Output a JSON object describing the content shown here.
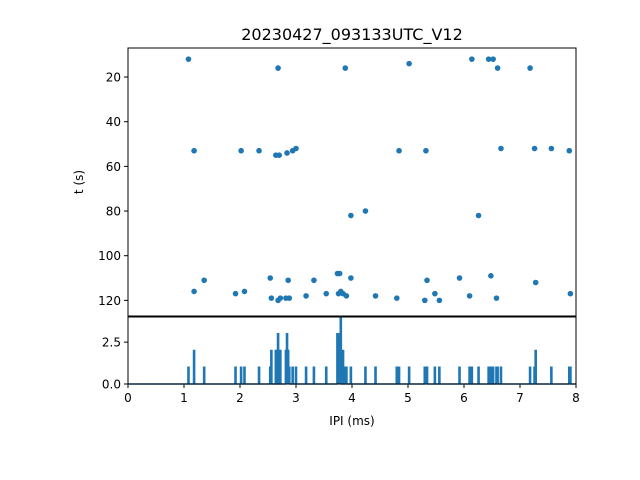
{
  "chart_data": [
    {
      "type": "scatter",
      "title": "20230427_093133UTC_V12",
      "xlabel": "",
      "ylabel": "t (s)",
      "xlim": [
        0,
        8
      ],
      "ylim": [
        127,
        7
      ],
      "y_inverted": true,
      "yticks": [
        20,
        40,
        60,
        80,
        100,
        120
      ],
      "color": "#1f77b4",
      "points": [
        {
          "x": 1.08,
          "y": 12
        },
        {
          "x": 2.68,
          "y": 16
        },
        {
          "x": 3.88,
          "y": 16
        },
        {
          "x": 5.02,
          "y": 14
        },
        {
          "x": 6.14,
          "y": 12
        },
        {
          "x": 6.44,
          "y": 12
        },
        {
          "x": 6.52,
          "y": 12
        },
        {
          "x": 6.6,
          "y": 16
        },
        {
          "x": 7.18,
          "y": 16
        },
        {
          "x": 1.18,
          "y": 53
        },
        {
          "x": 2.02,
          "y": 53
        },
        {
          "x": 2.34,
          "y": 53
        },
        {
          "x": 2.64,
          "y": 55
        },
        {
          "x": 2.7,
          "y": 55
        },
        {
          "x": 2.84,
          "y": 54
        },
        {
          "x": 2.94,
          "y": 53
        },
        {
          "x": 3.0,
          "y": 52
        },
        {
          "x": 4.84,
          "y": 53
        },
        {
          "x": 5.32,
          "y": 53
        },
        {
          "x": 6.66,
          "y": 52
        },
        {
          "x": 7.26,
          "y": 52
        },
        {
          "x": 7.56,
          "y": 52
        },
        {
          "x": 7.88,
          "y": 53
        },
        {
          "x": 3.98,
          "y": 82
        },
        {
          "x": 4.24,
          "y": 80
        },
        {
          "x": 6.26,
          "y": 82
        },
        {
          "x": 1.18,
          "y": 116
        },
        {
          "x": 1.36,
          "y": 111
        },
        {
          "x": 1.92,
          "y": 117
        },
        {
          "x": 2.08,
          "y": 116
        },
        {
          "x": 2.54,
          "y": 110
        },
        {
          "x": 2.56,
          "y": 119
        },
        {
          "x": 2.68,
          "y": 120
        },
        {
          "x": 2.72,
          "y": 119
        },
        {
          "x": 2.82,
          "y": 119
        },
        {
          "x": 2.86,
          "y": 111
        },
        {
          "x": 2.88,
          "y": 119
        },
        {
          "x": 3.18,
          "y": 118
        },
        {
          "x": 3.32,
          "y": 111
        },
        {
          "x": 3.54,
          "y": 117
        },
        {
          "x": 3.74,
          "y": 108
        },
        {
          "x": 3.78,
          "y": 108
        },
        {
          "x": 3.76,
          "y": 117
        },
        {
          "x": 3.8,
          "y": 116
        },
        {
          "x": 3.84,
          "y": 117
        },
        {
          "x": 3.9,
          "y": 118
        },
        {
          "x": 3.98,
          "y": 110
        },
        {
          "x": 4.42,
          "y": 118
        },
        {
          "x": 4.8,
          "y": 119
        },
        {
          "x": 5.3,
          "y": 120
        },
        {
          "x": 5.34,
          "y": 111
        },
        {
          "x": 5.48,
          "y": 117
        },
        {
          "x": 5.56,
          "y": 120
        },
        {
          "x": 5.92,
          "y": 110
        },
        {
          "x": 6.1,
          "y": 118
        },
        {
          "x": 6.48,
          "y": 109
        },
        {
          "x": 6.58,
          "y": 119
        },
        {
          "x": 7.28,
          "y": 112
        },
        {
          "x": 7.9,
          "y": 117
        }
      ]
    },
    {
      "type": "line",
      "title": "",
      "xlabel": "IPI (ms)",
      "ylabel": "",
      "xlim": [
        0,
        8
      ],
      "ylim": [
        0,
        4
      ],
      "xticks": [
        0,
        1,
        2,
        3,
        4,
        5,
        6,
        7,
        8
      ],
      "yticks": [
        "0.0",
        "2.5"
      ],
      "color": "#1f77b4",
      "bin_width": 0.02,
      "peaks": [
        {
          "x": 1.08,
          "y": 1
        },
        {
          "x": 1.18,
          "y": 2
        },
        {
          "x": 1.36,
          "y": 1
        },
        {
          "x": 1.92,
          "y": 1
        },
        {
          "x": 2.02,
          "y": 1
        },
        {
          "x": 2.08,
          "y": 1
        },
        {
          "x": 2.34,
          "y": 1
        },
        {
          "x": 2.54,
          "y": 1
        },
        {
          "x": 2.56,
          "y": 2
        },
        {
          "x": 2.64,
          "y": 2
        },
        {
          "x": 2.68,
          "y": 3
        },
        {
          "x": 2.72,
          "y": 2
        },
        {
          "x": 2.82,
          "y": 2
        },
        {
          "x": 2.84,
          "y": 3
        },
        {
          "x": 2.86,
          "y": 2
        },
        {
          "x": 2.88,
          "y": 1
        },
        {
          "x": 2.94,
          "y": 1
        },
        {
          "x": 3.0,
          "y": 1
        },
        {
          "x": 3.18,
          "y": 1
        },
        {
          "x": 3.32,
          "y": 1
        },
        {
          "x": 3.54,
          "y": 1
        },
        {
          "x": 3.74,
          "y": 3
        },
        {
          "x": 3.76,
          "y": 2
        },
        {
          "x": 3.78,
          "y": 3
        },
        {
          "x": 3.8,
          "y": 4
        },
        {
          "x": 3.84,
          "y": 2
        },
        {
          "x": 3.88,
          "y": 1
        },
        {
          "x": 3.9,
          "y": 1
        },
        {
          "x": 3.98,
          "y": 1
        },
        {
          "x": 4.24,
          "y": 1
        },
        {
          "x": 4.42,
          "y": 1
        },
        {
          "x": 4.8,
          "y": 1
        },
        {
          "x": 4.84,
          "y": 1
        },
        {
          "x": 5.02,
          "y": 1
        },
        {
          "x": 5.3,
          "y": 1
        },
        {
          "x": 5.32,
          "y": 1
        },
        {
          "x": 5.34,
          "y": 1
        },
        {
          "x": 5.48,
          "y": 1
        },
        {
          "x": 5.56,
          "y": 1
        },
        {
          "x": 5.92,
          "y": 1
        },
        {
          "x": 6.1,
          "y": 1
        },
        {
          "x": 6.14,
          "y": 1
        },
        {
          "x": 6.26,
          "y": 1
        },
        {
          "x": 6.44,
          "y": 1
        },
        {
          "x": 6.48,
          "y": 1
        },
        {
          "x": 6.52,
          "y": 1
        },
        {
          "x": 6.58,
          "y": 1
        },
        {
          "x": 6.6,
          "y": 1
        },
        {
          "x": 6.66,
          "y": 1
        },
        {
          "x": 7.18,
          "y": 1
        },
        {
          "x": 7.26,
          "y": 1
        },
        {
          "x": 7.28,
          "y": 2
        },
        {
          "x": 7.56,
          "y": 1
        },
        {
          "x": 7.88,
          "y": 1
        },
        {
          "x": 7.9,
          "y": 1
        }
      ]
    }
  ]
}
